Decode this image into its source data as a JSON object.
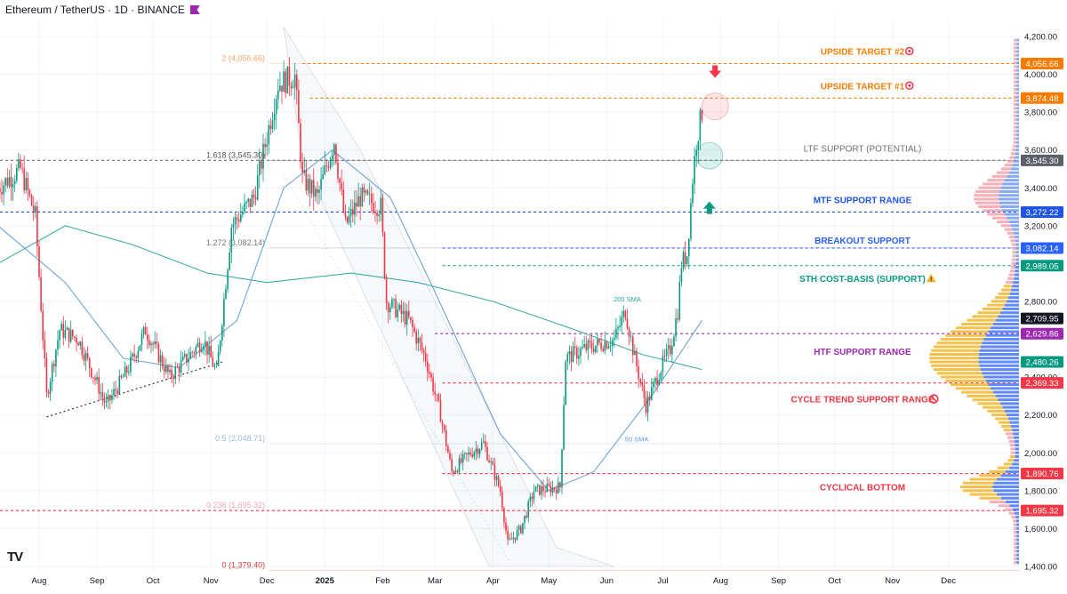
{
  "header": {
    "title": "Ethereum / TetherUS · 1D · BINANCE",
    "flag_color": "#9c27b0"
  },
  "logo": {
    "text": "TV"
  },
  "chart_data": {
    "type": "candlestick",
    "title": "Ethereum / TetherUS · 1D · BINANCE",
    "price_axis": {
      "ylim": [
        1400,
        4200
      ],
      "ticks": [
        4200,
        4000,
        3800,
        3600,
        3400,
        3200,
        2800,
        2400,
        2200,
        2000,
        1800,
        1600,
        1400
      ],
      "tick_labels": [
        "4,200.00",
        "4,000.00",
        "3,800.00",
        "3,600.00",
        "3,400.00",
        "3,200.00",
        "2,800.00",
        "2,400.00",
        "2,200.00",
        "2,000.00",
        "1,800.00",
        "1,600.00",
        "1,400.00"
      ]
    },
    "time_axis": {
      "ticks": [
        {
          "label": "Aug",
          "date": "2024-08-01"
        },
        {
          "label": "Sep",
          "date": "2024-09-01"
        },
        {
          "label": "Oct",
          "date": "2024-10-01"
        },
        {
          "label": "Nov",
          "date": "2024-11-01"
        },
        {
          "label": "Dec",
          "date": "2024-12-01"
        },
        {
          "label": "2025",
          "date": "2025-01-01",
          "bold": true
        },
        {
          "label": "Feb",
          "date": "2025-02-01"
        },
        {
          "label": "Mar",
          "date": "2025-03-01"
        },
        {
          "label": "Apr",
          "date": "2025-04-01"
        },
        {
          "label": "May",
          "date": "2025-05-01"
        },
        {
          "label": "Jun",
          "date": "2025-06-01"
        },
        {
          "label": "Jul",
          "date": "2025-07-01"
        },
        {
          "label": "Aug",
          "date": "2025-08-01"
        },
        {
          "label": "Sep",
          "date": "2025-09-01"
        },
        {
          "label": "Oct",
          "date": "2025-10-01"
        },
        {
          "label": "Nov",
          "date": "2025-11-01"
        },
        {
          "label": "Dec",
          "date": "2025-12-01"
        }
      ]
    },
    "price_path": [
      [
        "2024-07-10",
        3400
      ],
      [
        "2024-07-22",
        3500
      ],
      [
        "2024-07-30",
        3250
      ],
      [
        "2024-08-05",
        2300
      ],
      [
        "2024-08-12",
        2650
      ],
      [
        "2024-08-22",
        2600
      ],
      [
        "2024-09-06",
        2250
      ],
      [
        "2024-09-18",
        2450
      ],
      [
        "2024-09-27",
        2650
      ],
      [
        "2024-10-10",
        2400
      ],
      [
        "2024-10-28",
        2600
      ],
      [
        "2024-11-04",
        2420
      ],
      [
        "2024-11-12",
        3200
      ],
      [
        "2024-11-24",
        3350
      ],
      [
        "2024-12-07",
        3950
      ],
      [
        "2024-12-16",
        3990
      ],
      [
        "2024-12-20",
        3450
      ],
      [
        "2024-12-28",
        3350
      ],
      [
        "2025-01-06",
        3650
      ],
      [
        "2025-01-12",
        3200
      ],
      [
        "2025-01-20",
        3350
      ],
      [
        "2025-01-31",
        3300
      ],
      [
        "2025-02-03",
        2800
      ],
      [
        "2025-02-15",
        2700
      ],
      [
        "2025-02-24",
        2500
      ],
      [
        "2025-03-04",
        2200
      ],
      [
        "2025-03-10",
        1900
      ],
      [
        "2025-03-20",
        2000
      ],
      [
        "2025-03-27",
        2050
      ],
      [
        "2025-04-05",
        1800
      ],
      [
        "2025-04-09",
        1520
      ],
      [
        "2025-04-16",
        1600
      ],
      [
        "2025-04-23",
        1800
      ],
      [
        "2025-05-07",
        1820
      ],
      [
        "2025-05-10",
        2500
      ],
      [
        "2025-05-20",
        2550
      ],
      [
        "2025-06-05",
        2600
      ],
      [
        "2025-06-11",
        2750
      ],
      [
        "2025-06-16",
        2500
      ],
      [
        "2025-06-22",
        2250
      ],
      [
        "2025-06-30",
        2450
      ],
      [
        "2025-07-05",
        2550
      ],
      [
        "2025-07-09",
        2750
      ],
      [
        "2025-07-11",
        3000
      ],
      [
        "2025-07-14",
        3050
      ],
      [
        "2025-07-17",
        3450
      ],
      [
        "2025-07-19",
        3650
      ],
      [
        "2025-07-22",
        3800
      ]
    ],
    "moving_averages": [
      {
        "name": "200 SMA",
        "color": "#26a69a",
        "label": "200 SMA",
        "label_at": [
          "2025-06-12",
          2800
        ],
        "points": [
          [
            "2024-07-10",
            3000
          ],
          [
            "2024-08-15",
            3200
          ],
          [
            "2024-09-20",
            3100
          ],
          [
            "2024-10-30",
            2950
          ],
          [
            "2024-12-01",
            2900
          ],
          [
            "2025-01-15",
            2950
          ],
          [
            "2025-02-20",
            2900
          ],
          [
            "2025-04-01",
            2800
          ],
          [
            "2025-05-15",
            2650
          ],
          [
            "2025-06-20",
            2520
          ],
          [
            "2025-07-22",
            2440
          ]
        ]
      },
      {
        "name": "50 SMA",
        "color": "#5b9bd5",
        "label": "50 SMA",
        "label_at": [
          "2025-06-17",
          2060
        ],
        "points": [
          [
            "2024-07-10",
            3200
          ],
          [
            "2024-08-15",
            2900
          ],
          [
            "2024-09-15",
            2500
          ],
          [
            "2024-10-15",
            2450
          ],
          [
            "2024-11-15",
            2700
          ],
          [
            "2024-12-10",
            3400
          ],
          [
            "2025-01-05",
            3600
          ],
          [
            "2025-02-05",
            3350
          ],
          [
            "2025-03-01",
            2850
          ],
          [
            "2025-04-05",
            2100
          ],
          [
            "2025-05-01",
            1800
          ],
          [
            "2025-05-25",
            1900
          ],
          [
            "2025-06-25",
            2300
          ],
          [
            "2025-07-22",
            2700
          ]
        ]
      }
    ],
    "fibonacci": [
      {
        "label": "2 (4,056.66)",
        "value": 4056.66,
        "color": "#f7a35c"
      },
      {
        "label": "1.618 (3,545.30)",
        "value": 3545.3,
        "color": "#555555"
      },
      {
        "label": "1.272 (3,082.14)",
        "value": 3082.14,
        "color": "#777777"
      },
      {
        "label": "0.5 (2,048.71)",
        "value": 2048.71,
        "color": "#9ab7d8"
      },
      {
        "label": "0.236 (1,695.32)",
        "value": 1695.32,
        "color": "#f4a6b4"
      },
      {
        "label": "0 (1,379.40)",
        "value": 1379.4,
        "color": "#e53935"
      }
    ],
    "levels": [
      {
        "label": "UPSIDE TARGET #2",
        "value": 4056.66,
        "price_tag": "4,056.66",
        "color": "#f57c00",
        "icon": "target-icon"
      },
      {
        "label": "UPSIDE TARGET #1",
        "value": 3874.48,
        "price_tag": "3,874.48",
        "color": "#f57c00",
        "icon": "target-icon"
      },
      {
        "label": "LTF SUPPORT (POTENTIAL)",
        "value": 3545.3,
        "price_tag": "3,545.30",
        "color": "#707070"
      },
      {
        "label": "MTF SUPPORT RANGE",
        "value": 3272.22,
        "price_tag": "3,272.22",
        "color": "#1e53e5"
      },
      {
        "label": "BREAKOUT SUPPORT",
        "value": 3082.14,
        "price_tag": "3,082.14",
        "color": "#2962ff"
      },
      {
        "label": "STH COST-BASIS (SUPPORT)",
        "value": 2989.05,
        "price_tag": "2,989.05",
        "color": "#089981",
        "icon": "warning-icon"
      },
      {
        "label": "HTF SUPPORT RANGE",
        "value": 2629.86,
        "price_tag": "2,629.86",
        "color": "#9c27b0"
      },
      {
        "label": "CYCLE TREND SUPPORT RANGE",
        "value": 2369.33,
        "price_tag": "2,369.33",
        "color": "#f23645",
        "icon": "prohibited-icon"
      },
      {
        "label": "CYCLICAL BOTTOM",
        "value": 1890.76,
        "price_tag": "1,890.76",
        "color": "#f23645"
      },
      {
        "label": "",
        "value": 1695.32,
        "price_tag": "1,695.32",
        "color": "#f23645"
      }
    ],
    "extra_price_tags": [
      {
        "value": 2709.95,
        "price_tag": "2,709.95",
        "color": "#131722"
      },
      {
        "value": 2480.26,
        "price_tag": "2,480.26",
        "color": "#089981"
      }
    ],
    "annotations": {
      "down_arrow": {
        "at": [
          "2025-07-29",
          4010
        ],
        "color": "#f23645"
      },
      "up_arrow": {
        "at": [
          "2025-07-26",
          3300
        ],
        "color": "#089981"
      },
      "red_circle": {
        "at": [
          "2025-07-29",
          3830
        ],
        "color": "#f23645"
      },
      "green_circle": {
        "at": [
          "2025-07-26",
          3570
        ],
        "color": "#089981"
      }
    },
    "colors": {
      "up": "#089981",
      "down": "#f23645"
    }
  }
}
